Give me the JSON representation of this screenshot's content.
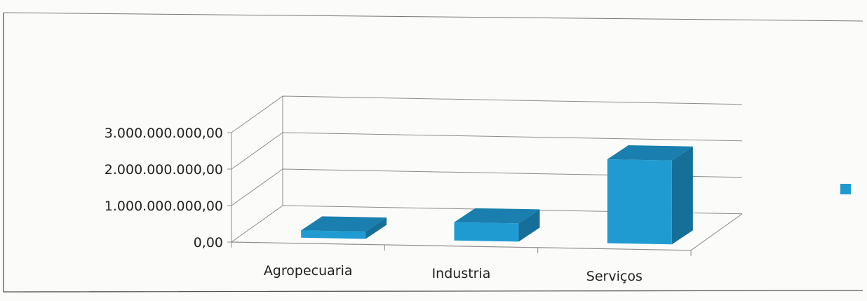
{
  "chart_data": {
    "type": "bar",
    "style": "3d-column",
    "categories": [
      "Agropecuaria",
      "Industria",
      "Serviços"
    ],
    "series": [
      {
        "values": [
          200000000,
          500000000,
          2300000000
        ]
      }
    ],
    "y_tick_labels": [
      "0,00",
      "1.000.000.000,00",
      "2.000.000.000,00",
      "3.000.000.000,00"
    ],
    "ylim": [
      0,
      3000000000
    ],
    "grid": true,
    "legend": "right",
    "colors": {
      "bar_front": "#1f9bd1",
      "bar_top": "#1a7fae",
      "bar_side": "#156f99",
      "grid": "#8c8c8c"
    }
  }
}
